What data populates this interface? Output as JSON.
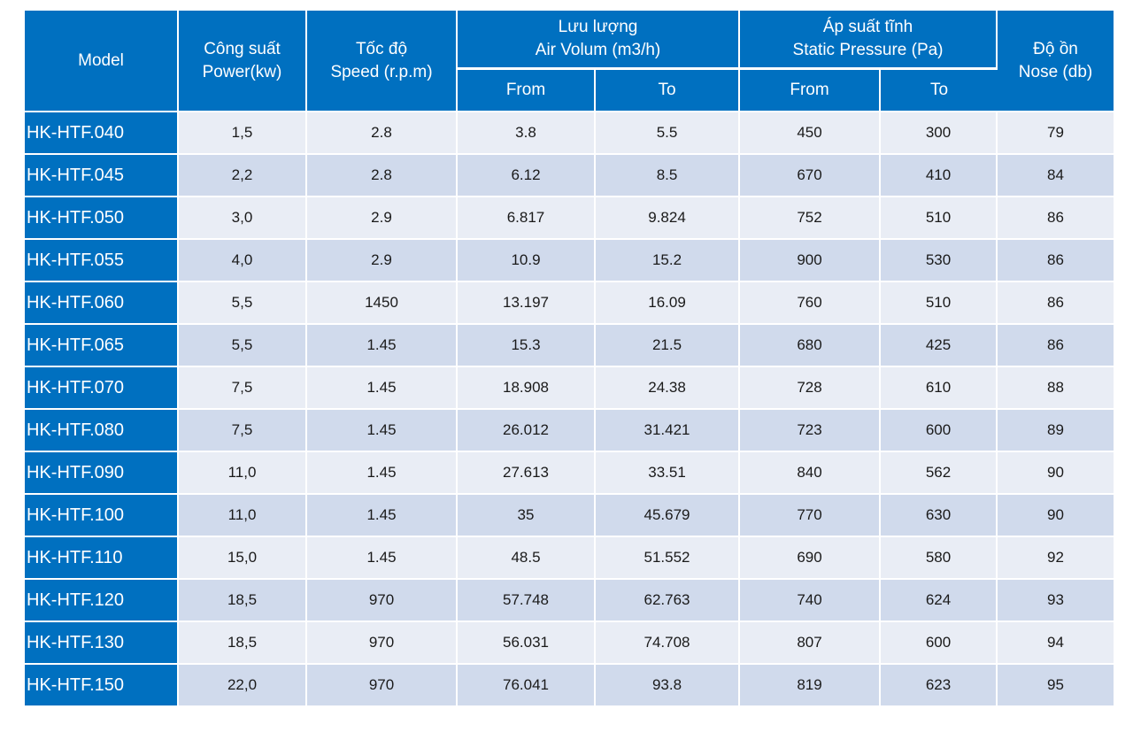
{
  "header": {
    "model": "Model",
    "power_vi": "Công suất",
    "power_en": "Power(kw)",
    "speed_vi": "Tốc độ",
    "speed_en": "Speed (r.p.m)",
    "airflow_vi": "Lưu lượng",
    "airflow_en": "Air Volum (m3/h)",
    "pressure_vi": "Áp suất tĩnh",
    "pressure_en": "Static Pressure (Pa)",
    "noise_vi": "Độ ồn",
    "noise_en": "Nose (db)",
    "from": "From",
    "to": "To"
  },
  "rows": [
    {
      "model": "HK-HTF.040",
      "power": "1,5",
      "speed": "2.8",
      "air_from": "3.8",
      "air_to": "5.5",
      "pres_from": "450",
      "pres_to": "300",
      "noise": "79"
    },
    {
      "model": "HK-HTF.045",
      "power": "2,2",
      "speed": "2.8",
      "air_from": "6.12",
      "air_to": "8.5",
      "pres_from": "670",
      "pres_to": "410",
      "noise": "84"
    },
    {
      "model": "HK-HTF.050",
      "power": "3,0",
      "speed": "2.9",
      "air_from": "6.817",
      "air_to": "9.824",
      "pres_from": "752",
      "pres_to": "510",
      "noise": "86"
    },
    {
      "model": "HK-HTF.055",
      "power": "4,0",
      "speed": "2.9",
      "air_from": "10.9",
      "air_to": "15.2",
      "pres_from": "900",
      "pres_to": "530",
      "noise": "86"
    },
    {
      "model": "HK-HTF.060",
      "power": "5,5",
      "speed": "1450",
      "air_from": "13.197",
      "air_to": "16.09",
      "pres_from": "760",
      "pres_to": "510",
      "noise": "86"
    },
    {
      "model": "HK-HTF.065",
      "power": "5,5",
      "speed": "1.45",
      "air_from": "15.3",
      "air_to": "21.5",
      "pres_from": "680",
      "pres_to": "425",
      "noise": "86"
    },
    {
      "model": "HK-HTF.070",
      "power": "7,5",
      "speed": "1.45",
      "air_from": "18.908",
      "air_to": "24.38",
      "pres_from": "728",
      "pres_to": "610",
      "noise": "88"
    },
    {
      "model": "HK-HTF.080",
      "power": "7,5",
      "speed": "1.45",
      "air_from": "26.012",
      "air_to": "31.421",
      "pres_from": "723",
      "pres_to": "600",
      "noise": "89"
    },
    {
      "model": "HK-HTF.090",
      "power": "11,0",
      "speed": "1.45",
      "air_from": "27.613",
      "air_to": "33.51",
      "pres_from": "840",
      "pres_to": "562",
      "noise": "90"
    },
    {
      "model": "HK-HTF.100",
      "power": "11,0",
      "speed": "1.45",
      "air_from": "35",
      "air_to": "45.679",
      "pres_from": "770",
      "pres_to": "630",
      "noise": "90"
    },
    {
      "model": "HK-HTF.110",
      "power": "15,0",
      "speed": "1.45",
      "air_from": "48.5",
      "air_to": "51.552",
      "pres_from": "690",
      "pres_to": "580",
      "noise": "92"
    },
    {
      "model": "HK-HTF.120",
      "power": "18,5",
      "speed": "970",
      "air_from": "57.748",
      "air_to": "62.763",
      "pres_from": "740",
      "pres_to": "624",
      "noise": "93"
    },
    {
      "model": "HK-HTF.130",
      "power": "18,5",
      "speed": "970",
      "air_from": "56.031",
      "air_to": "74.708",
      "pres_from": "807",
      "pres_to": "600",
      "noise": "94"
    },
    {
      "model": "HK-HTF.150",
      "power": "22,0",
      "speed": "970",
      "air_from": "76.041",
      "air_to": "93.8",
      "pres_from": "819",
      "pres_to": "623",
      "noise": "95"
    }
  ],
  "colors": {
    "header_bg": "#0070c0",
    "row_light": "#e9edf5",
    "row_dark": "#d0daec"
  }
}
